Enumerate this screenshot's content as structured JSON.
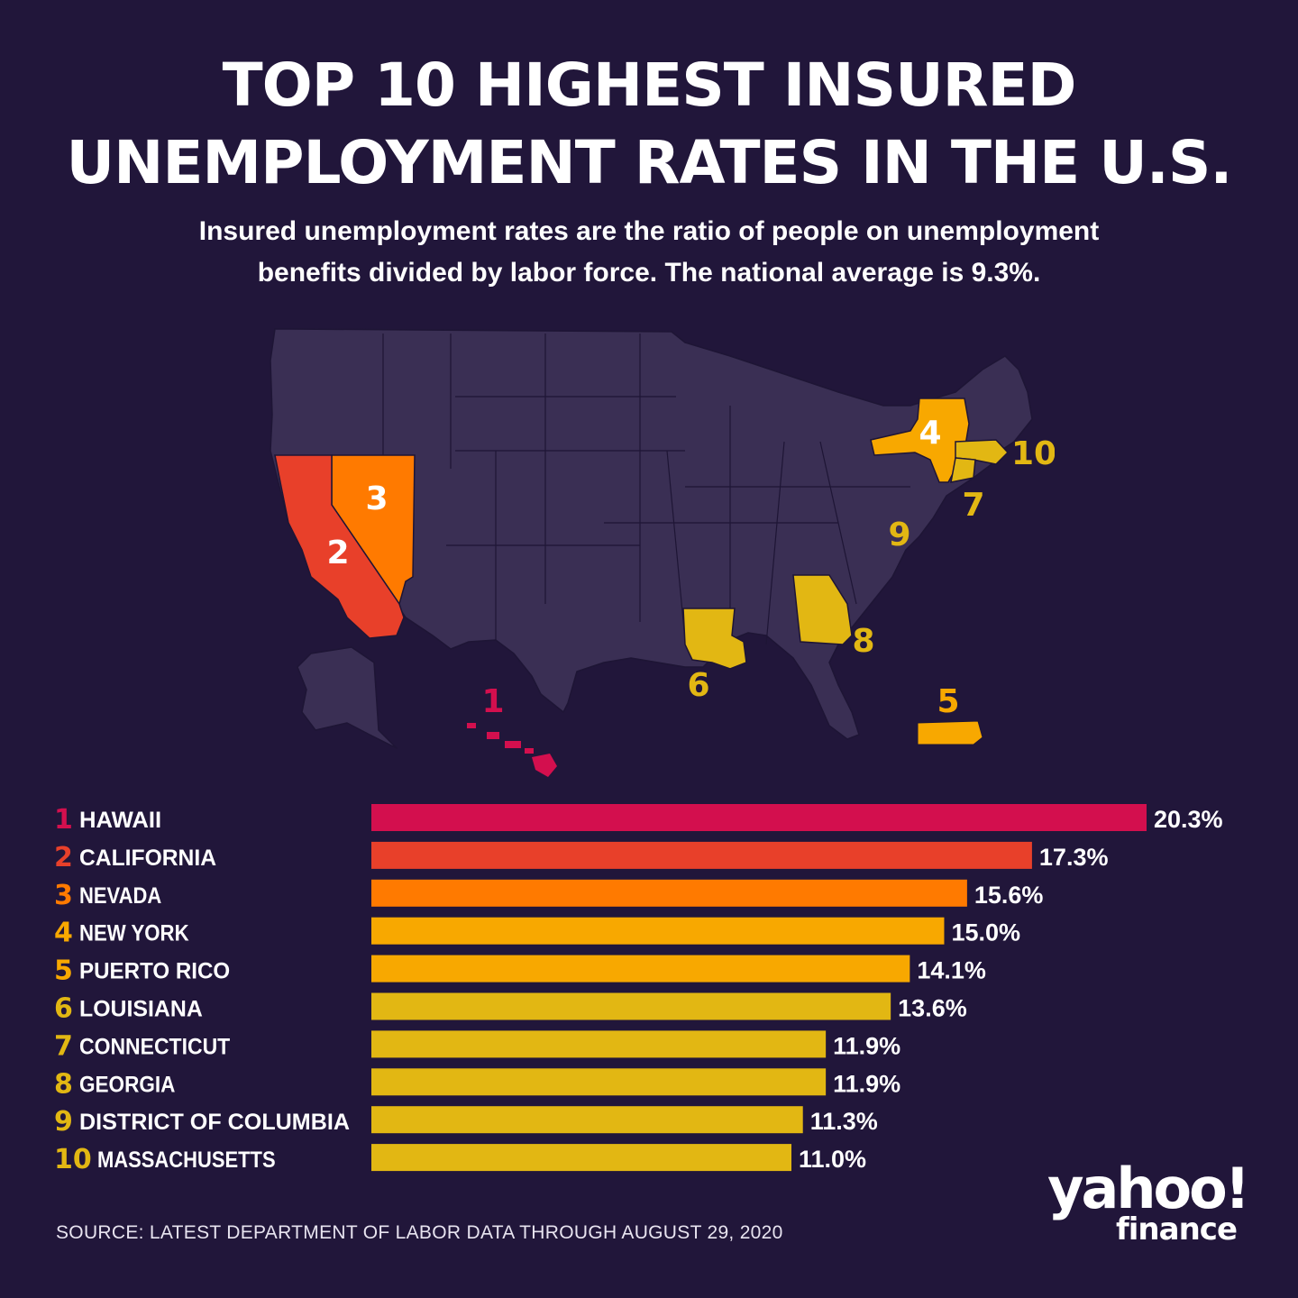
{
  "header": {
    "title_line1": "TOP 10 HIGHEST INSURED",
    "title_line2": "UNEMPLOYMENT RATES IN THE U.S.",
    "subtitle_line1": "Insured unemployment rates are the ratio of people on unemployment",
    "subtitle_line2": "benefits divided by labor force. The national average is 9.3%."
  },
  "footer": {
    "source": "SOURCE: LATEST DEPARTMENT OF LABOR DATA THROUGH AUGUST 29, 2020",
    "logo_yahoo": "yahoo!",
    "logo_finance": "finance"
  },
  "colors": {
    "background": "#21163a",
    "map_land": "#3a2f54",
    "map_border": "#1e1535",
    "rank1": "#d30f4e",
    "rank2": "#e8402a",
    "rank3": "#ff7a00",
    "rank4_5": "#f8a800",
    "rank6_10": "#e2b713"
  },
  "map_labels": [
    {
      "rank": "1",
      "state": "HAWAII"
    },
    {
      "rank": "2",
      "state": "CALIFORNIA"
    },
    {
      "rank": "3",
      "state": "NEVADA"
    },
    {
      "rank": "4",
      "state": "NEW YORK"
    },
    {
      "rank": "5",
      "state": "PUERTO RICO"
    },
    {
      "rank": "6",
      "state": "LOUISIANA"
    },
    {
      "rank": "7",
      "state": "CONNECTICUT"
    },
    {
      "rank": "8",
      "state": "GEORGIA"
    },
    {
      "rank": "9",
      "state": "DISTRICT OF COLUMBIA"
    },
    {
      "rank": "10",
      "state": "MASSACHUSETTS"
    }
  ],
  "chart_data": {
    "type": "bar",
    "orientation": "horizontal",
    "title": "TOP 10 HIGHEST INSURED UNEMPLOYMENT RATES IN THE U.S.",
    "categories": [
      "HAWAII",
      "CALIFORNIA",
      "NEVADA",
      "NEW YORK",
      "PUERTO RICO",
      "LOUISIANA",
      "CONNECTICUT",
      "GEORGIA",
      "DISTRICT OF COLUMBIA",
      "MASSACHUSETTS"
    ],
    "ranks": [
      "1",
      "2",
      "3",
      "4",
      "5",
      "6",
      "7",
      "8",
      "9",
      "10"
    ],
    "values": [
      20.3,
      17.3,
      15.6,
      15.0,
      14.1,
      13.6,
      11.9,
      11.9,
      11.3,
      11.0
    ],
    "value_labels": [
      "20.3%",
      "17.3%",
      "15.6%",
      "15.0%",
      "14.1%",
      "13.6%",
      "11.9%",
      "11.9%",
      "11.3%",
      "11.0%"
    ],
    "colors": [
      "#d30f4e",
      "#e8402a",
      "#ff7a00",
      "#f8a800",
      "#f8a800",
      "#e2b713",
      "#e2b713",
      "#e2b713",
      "#e2b713",
      "#e2b713"
    ],
    "xlim": [
      0,
      20.3
    ],
    "grid": false,
    "legend": "none"
  }
}
